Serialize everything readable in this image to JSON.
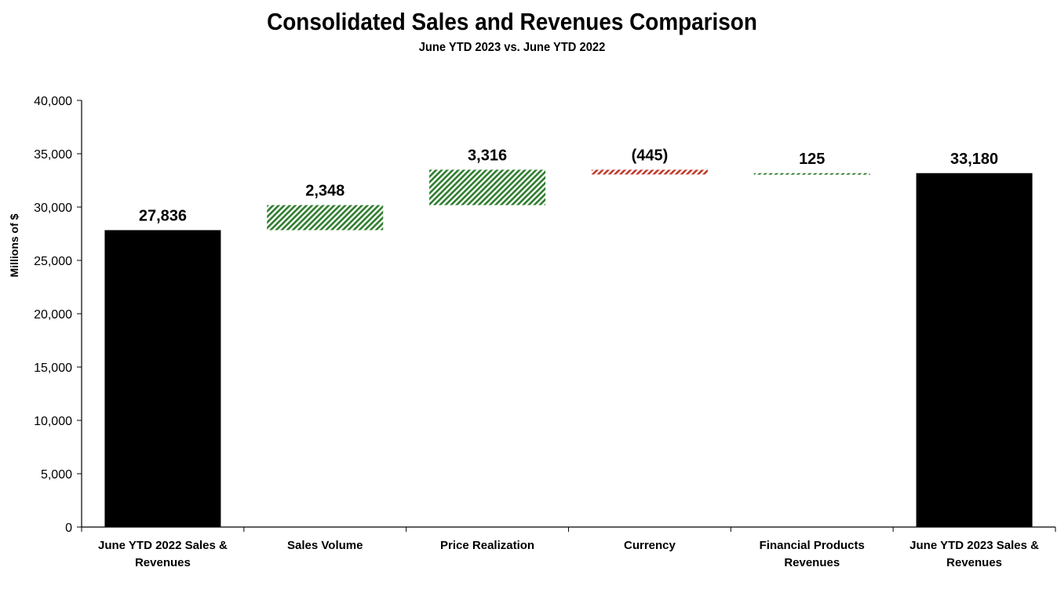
{
  "chart_data": {
    "type": "waterfall",
    "title": "Consolidated Sales and Revenues Comparison",
    "subtitle": "June YTD 2023 vs. June YTD 2022",
    "ylabel": "Millions of $",
    "xlabel": "",
    "ylim": [
      0,
      40000
    ],
    "ytick_step": 5000,
    "ytick_labels": [
      "0",
      "5,000",
      "10,000",
      "15,000",
      "20,000",
      "25,000",
      "30,000",
      "35,000",
      "40,000"
    ],
    "grid": false,
    "categories": [
      [
        "June YTD 2022 Sales &",
        "Revenues"
      ],
      [
        "Sales Volume"
      ],
      [
        "Price Realization"
      ],
      [
        "Currency"
      ],
      [
        "Financial Products",
        "Revenues"
      ],
      [
        "June YTD 2023 Sales &",
        "Revenues"
      ]
    ],
    "values": [
      27836,
      2348,
      3316,
      -445,
      125,
      33180
    ],
    "kinds": [
      "total",
      "delta",
      "delta",
      "delta",
      "delta",
      "total"
    ],
    "data_labels": [
      "27,836",
      "2,348",
      "3,316",
      "(445)",
      "125",
      "33,180"
    ],
    "colors": {
      "total": "#000000",
      "increase": "#2f7d2f",
      "decrease": "#c0392b"
    },
    "increase_fill": "diagonal-hatch",
    "decrease_fill": "diagonal-hatch"
  }
}
